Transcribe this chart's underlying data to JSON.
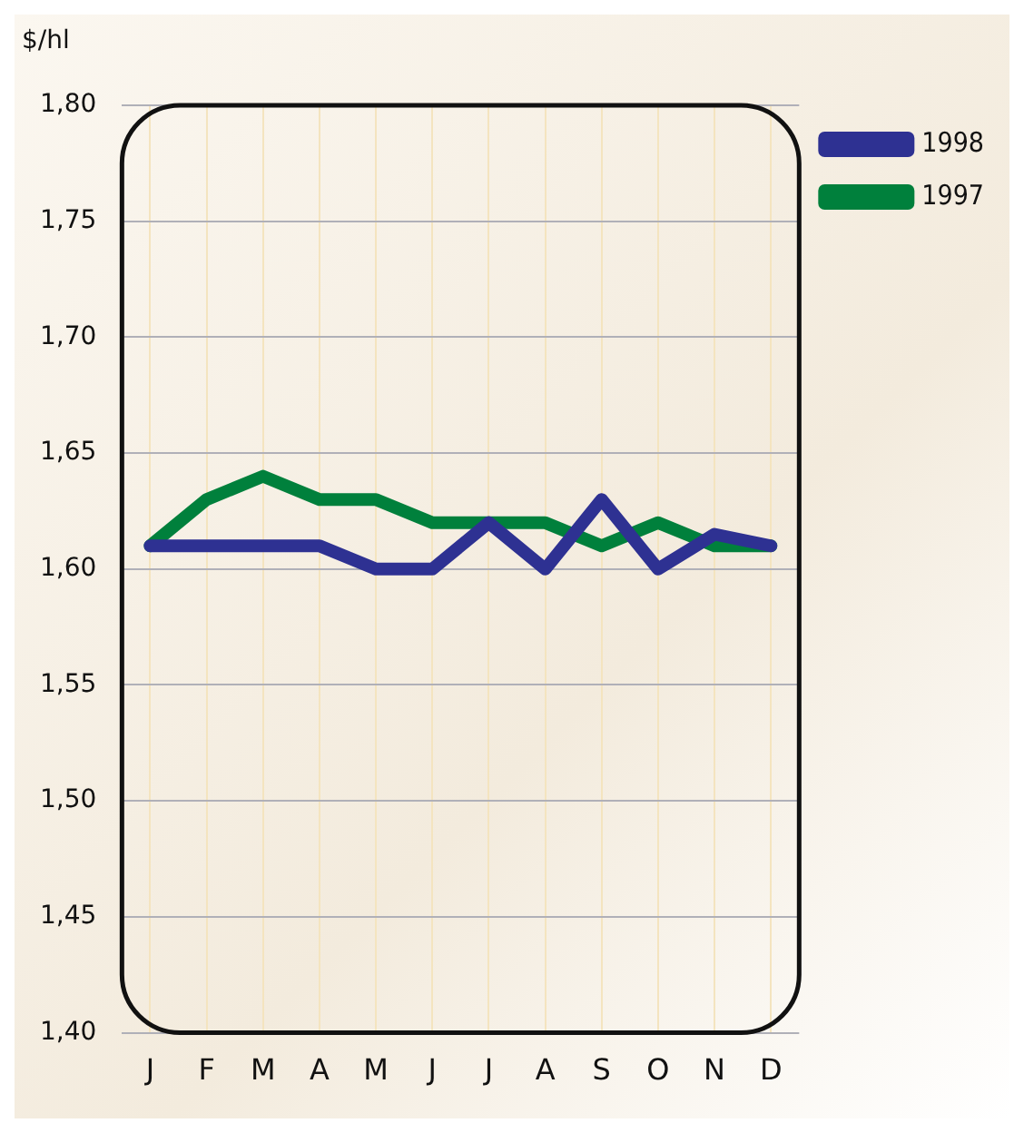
{
  "chart_data": {
    "type": "line",
    "ylabel": "$/hl",
    "categories": [
      "J",
      "F",
      "M",
      "A",
      "M",
      "J",
      "J",
      "A",
      "S",
      "O",
      "N",
      "D"
    ],
    "series": [
      {
        "name": "1998",
        "color": "#2e3192",
        "values": [
          1.61,
          1.61,
          1.61,
          1.61,
          1.6,
          1.6,
          1.62,
          1.6,
          1.63,
          1.6,
          1.615,
          1.61
        ]
      },
      {
        "name": "1997",
        "color": "#00803c",
        "values": [
          1.61,
          1.63,
          1.64,
          1.63,
          1.63,
          1.62,
          1.62,
          1.62,
          1.61,
          1.62,
          1.61,
          1.61
        ]
      }
    ],
    "ylim": [
      1.4,
      1.8
    ],
    "yticks": [
      {
        "value": 1.4,
        "label": "1,40"
      },
      {
        "value": 1.45,
        "label": "1,45"
      },
      {
        "value": 1.5,
        "label": "1,50"
      },
      {
        "value": 1.55,
        "label": "1,55"
      },
      {
        "value": 1.6,
        "label": "1,60"
      },
      {
        "value": 1.65,
        "label": "1,65"
      },
      {
        "value": 1.7,
        "label": "1,70"
      },
      {
        "value": 1.75,
        "label": "1,75"
      },
      {
        "value": 1.8,
        "label": "1,80"
      }
    ],
    "grid": true,
    "legend": "top right",
    "marker": "none",
    "line_style": "solid"
  }
}
